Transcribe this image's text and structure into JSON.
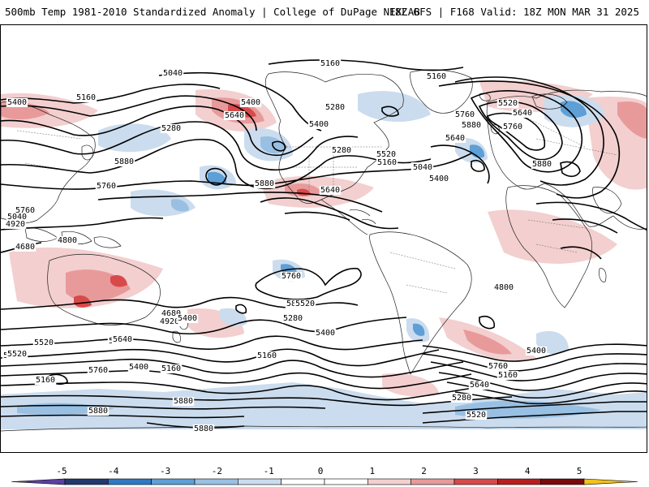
{
  "header": {
    "title": "500mb Temp 1981-2010 Standardized Anomaly | College of DuPage NEXLAB",
    "run_info": "18Z GFS | F168 Valid: 18Z MON MAR 31 2025"
  },
  "colors": {
    "colorbar": [
      "#5b3fa0",
      "#22386f",
      "#2f79c2",
      "#5e9fd6",
      "#99c0e3",
      "#cbdcee",
      "#ffffff",
      "#ffffff",
      "#f3cfcf",
      "#e89a9a",
      "#d84a4a",
      "#b91e1e",
      "#7a0a0a",
      "#f2c21b"
    ]
  },
  "colorbar": {
    "ticks": [
      "-5",
      "-4",
      "-3",
      "-2",
      "-1",
      "0",
      "1",
      "2",
      "3",
      "4",
      "5"
    ]
  },
  "contour_labels": [
    "5160",
    "5160",
    "5040",
    "5160",
    "5400",
    "5400",
    "5640",
    "5280",
    "5280",
    "5400",
    "5640",
    "5520",
    "5760",
    "5880",
    "5760",
    "5880",
    "5880",
    "5880",
    "5760",
    "5640",
    "5760",
    "5880",
    "5760",
    "5640",
    "5520",
    "5400",
    "5520",
    "5160",
    "5040",
    "5280",
    "5160",
    "5040",
    "4920",
    "4800",
    "4680",
    "4680",
    "4920",
    "4800",
    "5640",
    "5520",
    "5400",
    "5520",
    "5280",
    "5400",
    "5160",
    "5040",
    "5520",
    "5760",
    "5640",
    "5400",
    "5160",
    "5880",
    "5880",
    "5880",
    "5280",
    "5520",
    "5160",
    "5640",
    "5760",
    "5400"
  ]
}
